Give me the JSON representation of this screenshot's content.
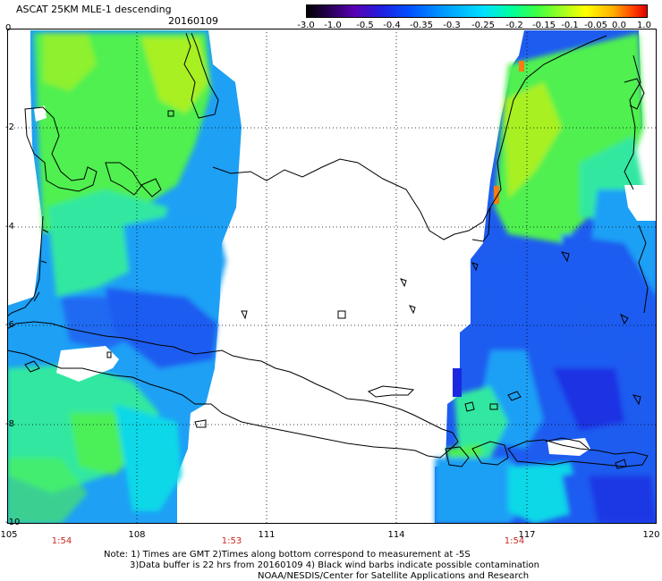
{
  "header": {
    "title": "ASCAT 25KM MLE-1 descending",
    "date": "20160109"
  },
  "colorbar": {
    "ticks": [
      "-3.0",
      "-1.0",
      "-0.5",
      "-0.4",
      "-0.35",
      "-0.3",
      "-0.25",
      "-0.2",
      "-0.15",
      "-0.1",
      "-0.05",
      "0.0",
      "1.0"
    ],
    "colors": [
      "#000000",
      "#5a00b4",
      "#2020e0",
      "#0050ff",
      "#0098ff",
      "#00e0ff",
      "#00ffa0",
      "#40ff40",
      "#a0ff20",
      "#ffff00",
      "#ffb000",
      "#e00000"
    ]
  },
  "axes": {
    "x_ticks": [
      "105",
      "108",
      "111",
      "114",
      "117",
      "120"
    ],
    "y_ticks": [
      "0",
      "-2",
      "-4",
      "-6",
      "-8",
      "-10"
    ]
  },
  "times": [
    "1:54",
    "1:53",
    "1:54"
  ],
  "notes": {
    "line1": "Note: 1) Times are GMT 2)Times along bottom correspond to measurement at -5S",
    "line2": "3)Data buffer is 22 hrs from 20160109 4) Black wind barbs indicate possible contamination",
    "line3": "NOAA/NESDIS/Center for Satellite Applications and Research"
  },
  "map_colors": {
    "dark_blue": "#1a28e0",
    "blue": "#1e5cf0",
    "light_blue": "#1ea0f5",
    "cyan": "#10d8e8",
    "teal_green": "#30e8a0",
    "green": "#50f050",
    "yellow_green": "#a8f020",
    "orange": "#ff7a10"
  }
}
